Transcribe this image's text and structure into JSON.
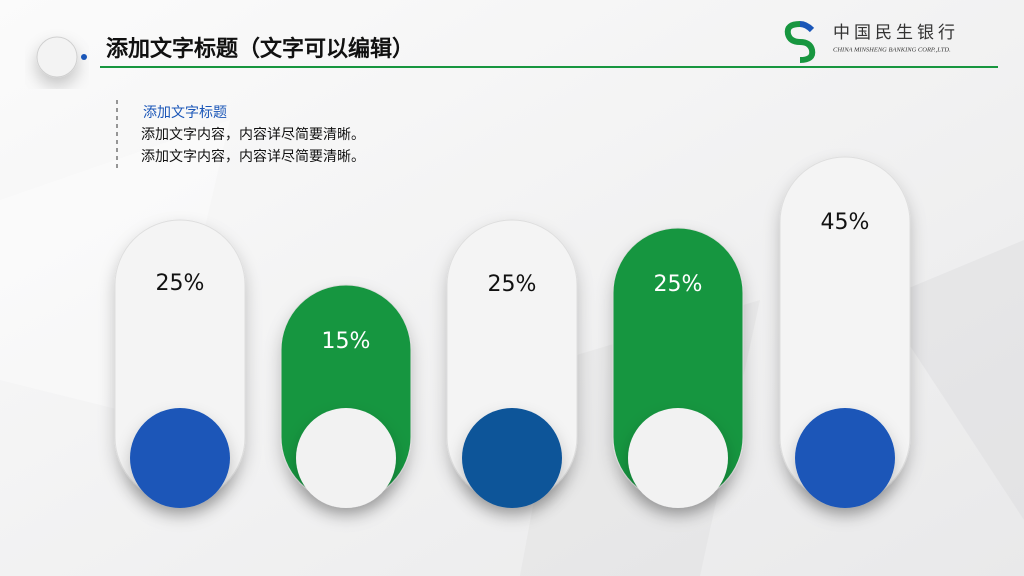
{
  "header": {
    "title": "添加文字标题（文字可以编辑）",
    "logo_cn": "中国民生银行",
    "logo_en": "CHINA MINSHENG BANKING CORP.,LTD."
  },
  "text_block": {
    "heading": "添加文字标题",
    "lines": [
      "添加文字内容，内容详尽简要清晰。",
      "添加文字内容，内容详尽简要清晰。"
    ]
  },
  "items": [
    {
      "label": "25%",
      "pill_color": "#f4f4f4",
      "circle_color": "#1a56b8",
      "text_color": "#111111"
    },
    {
      "label": "15%",
      "pill_color": "#17963f",
      "circle_color": "#f2f2f2",
      "text_color": "#ffffff"
    },
    {
      "label": "25%",
      "pill_color": "#f4f4f4",
      "circle_color": "#0d5499",
      "text_color": "#111111"
    },
    {
      "label": "25%",
      "pill_color": "#17963f",
      "circle_color": "#f2f2f2",
      "text_color": "#ffffff"
    },
    {
      "label": "45%",
      "pill_color": "#f4f4f4",
      "circle_color": "#1a56b8",
      "text_color": "#111111"
    }
  ]
}
